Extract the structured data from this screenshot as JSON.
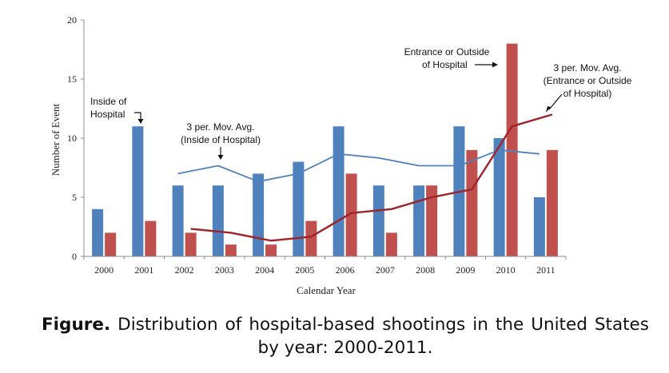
{
  "chart_data": {
    "type": "bar",
    "categories": [
      "2000",
      "2001",
      "2002",
      "2003",
      "2004",
      "2005",
      "2006",
      "2007",
      "2008",
      "2009",
      "2010",
      "2011"
    ],
    "series": [
      {
        "name": "Inside of Hospital",
        "color": "#4f81bd",
        "values": [
          4,
          11,
          6,
          6,
          7,
          8,
          11,
          6,
          6,
          11,
          10,
          5
        ]
      },
      {
        "name": "Entrance or Outside of Hospital",
        "color": "#c0504d",
        "values": [
          2,
          3,
          2,
          1,
          1,
          3,
          7,
          2,
          6,
          9,
          18,
          9
        ]
      }
    ],
    "lines": [
      {
        "name": "3 per. Mov. Avg. (Inside of Hospital)",
        "color": "#4f81bd",
        "start_index": 2,
        "values": [
          7,
          7.67,
          6.33,
          7,
          8.67,
          8.33,
          7.67,
          7.67,
          9,
          8.67
        ]
      },
      {
        "name": "3 per. Mov. Avg. (Entrance or Outside of Hospital)",
        "color": "#a0232a",
        "start_index": 2,
        "values": [
          2.33,
          2,
          1.33,
          1.67,
          3.67,
          4,
          5,
          5.67,
          11,
          12
        ]
      }
    ],
    "ylim": [
      0,
      20
    ],
    "yticks": [
      "0",
      "5",
      "10",
      "15",
      "20"
    ],
    "xlabel": "Calendar Year",
    "ylabel": "Number of Event",
    "annotations": {
      "inside_bar": [
        "Inside of",
        "Hospital"
      ],
      "inside_avg": [
        "3 per. Mov. Avg.",
        "(Inside of Hospital)"
      ],
      "outside_bar": [
        "Entrance or Outside",
        "of Hospital"
      ],
      "outside_avg": [
        "3 per. Mov. Avg.",
        "(Entrance or Outside",
        "of Hospital)"
      ]
    }
  },
  "caption": {
    "label": "Figure.",
    "text": "Distribution of hospital-based shootings in the United States by year: 2000-2011."
  }
}
